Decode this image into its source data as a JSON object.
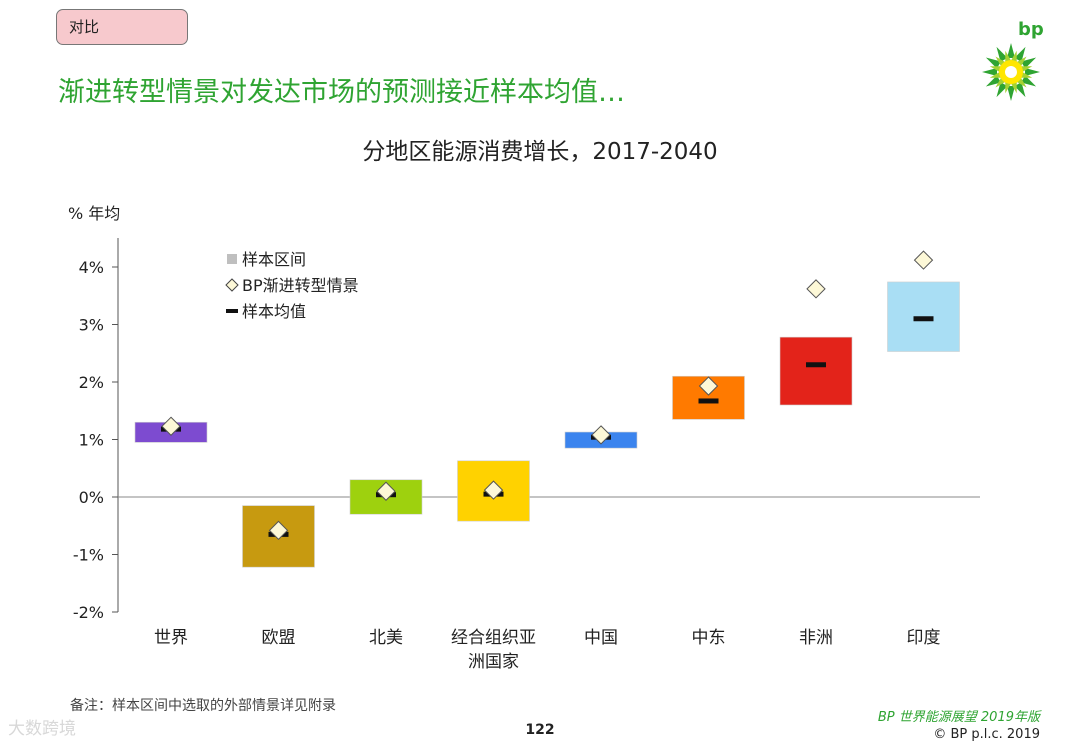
{
  "tag": "对比",
  "headline": "渐进转型情景对发达市场的预测接近样本均值…",
  "logo_text": "bp",
  "footnote": "备注：样本区间中选取的外部情景详见附录",
  "page_number": "122",
  "brand": "BP 世界能源展望 2019年版",
  "copyright": "© BP p.l.c. 2019",
  "watermark": "大数跨境",
  "chart_data": {
    "type": "range-bar",
    "title": "分地区能源消费增长，2017-2040",
    "ylabel": "% 年均",
    "ylim": [
      -2,
      4.5
    ],
    "yticks": [
      -2,
      -1,
      0,
      1,
      2,
      3,
      4
    ],
    "ytick_labels": [
      "-2%",
      "-1%",
      "0%",
      "1%",
      "2%",
      "3%",
      "4%"
    ],
    "legend": {
      "placement": "top-left",
      "items": [
        {
          "marker": "square",
          "label": "样本区间",
          "color": "#bfbfbf"
        },
        {
          "marker": "diamond",
          "label": "BP渐进转型情景"
        },
        {
          "marker": "dash",
          "label": "样本均值"
        }
      ]
    },
    "categories": [
      {
        "label": "世界",
        "low": 0.95,
        "high": 1.3,
        "mean": 1.18,
        "bp": 1.23,
        "color": "#7d4bd0"
      },
      {
        "label": "欧盟",
        "low": -1.22,
        "high": -0.15,
        "mean": -0.65,
        "bp": -0.58,
        "color": "#c79a10"
      },
      {
        "label": "北美",
        "low": -0.3,
        "high": 0.3,
        "mean": 0.04,
        "bp": 0.1,
        "color": "#9ed10e"
      },
      {
        "label": "经合组织亚洲国家",
        "label_lines": [
          "经合组织亚",
          "洲国家"
        ],
        "low": -0.42,
        "high": 0.63,
        "mean": 0.05,
        "bp": 0.12,
        "color": "#ffd200"
      },
      {
        "label": "中国",
        "low": 0.85,
        "high": 1.13,
        "mean": 1.04,
        "bp": 1.08,
        "color": "#3b84ee"
      },
      {
        "label": "中东",
        "low": 1.35,
        "high": 2.1,
        "mean": 1.67,
        "bp": 1.93,
        "color": "#ff7a00"
      },
      {
        "label": "非洲",
        "low": 1.6,
        "high": 2.78,
        "mean": 2.3,
        "bp": 3.62,
        "color": "#e3231a"
      },
      {
        "label": "印度",
        "low": 2.53,
        "high": 3.74,
        "mean": 3.1,
        "bp": 4.12,
        "color": "#a9def4"
      }
    ]
  }
}
